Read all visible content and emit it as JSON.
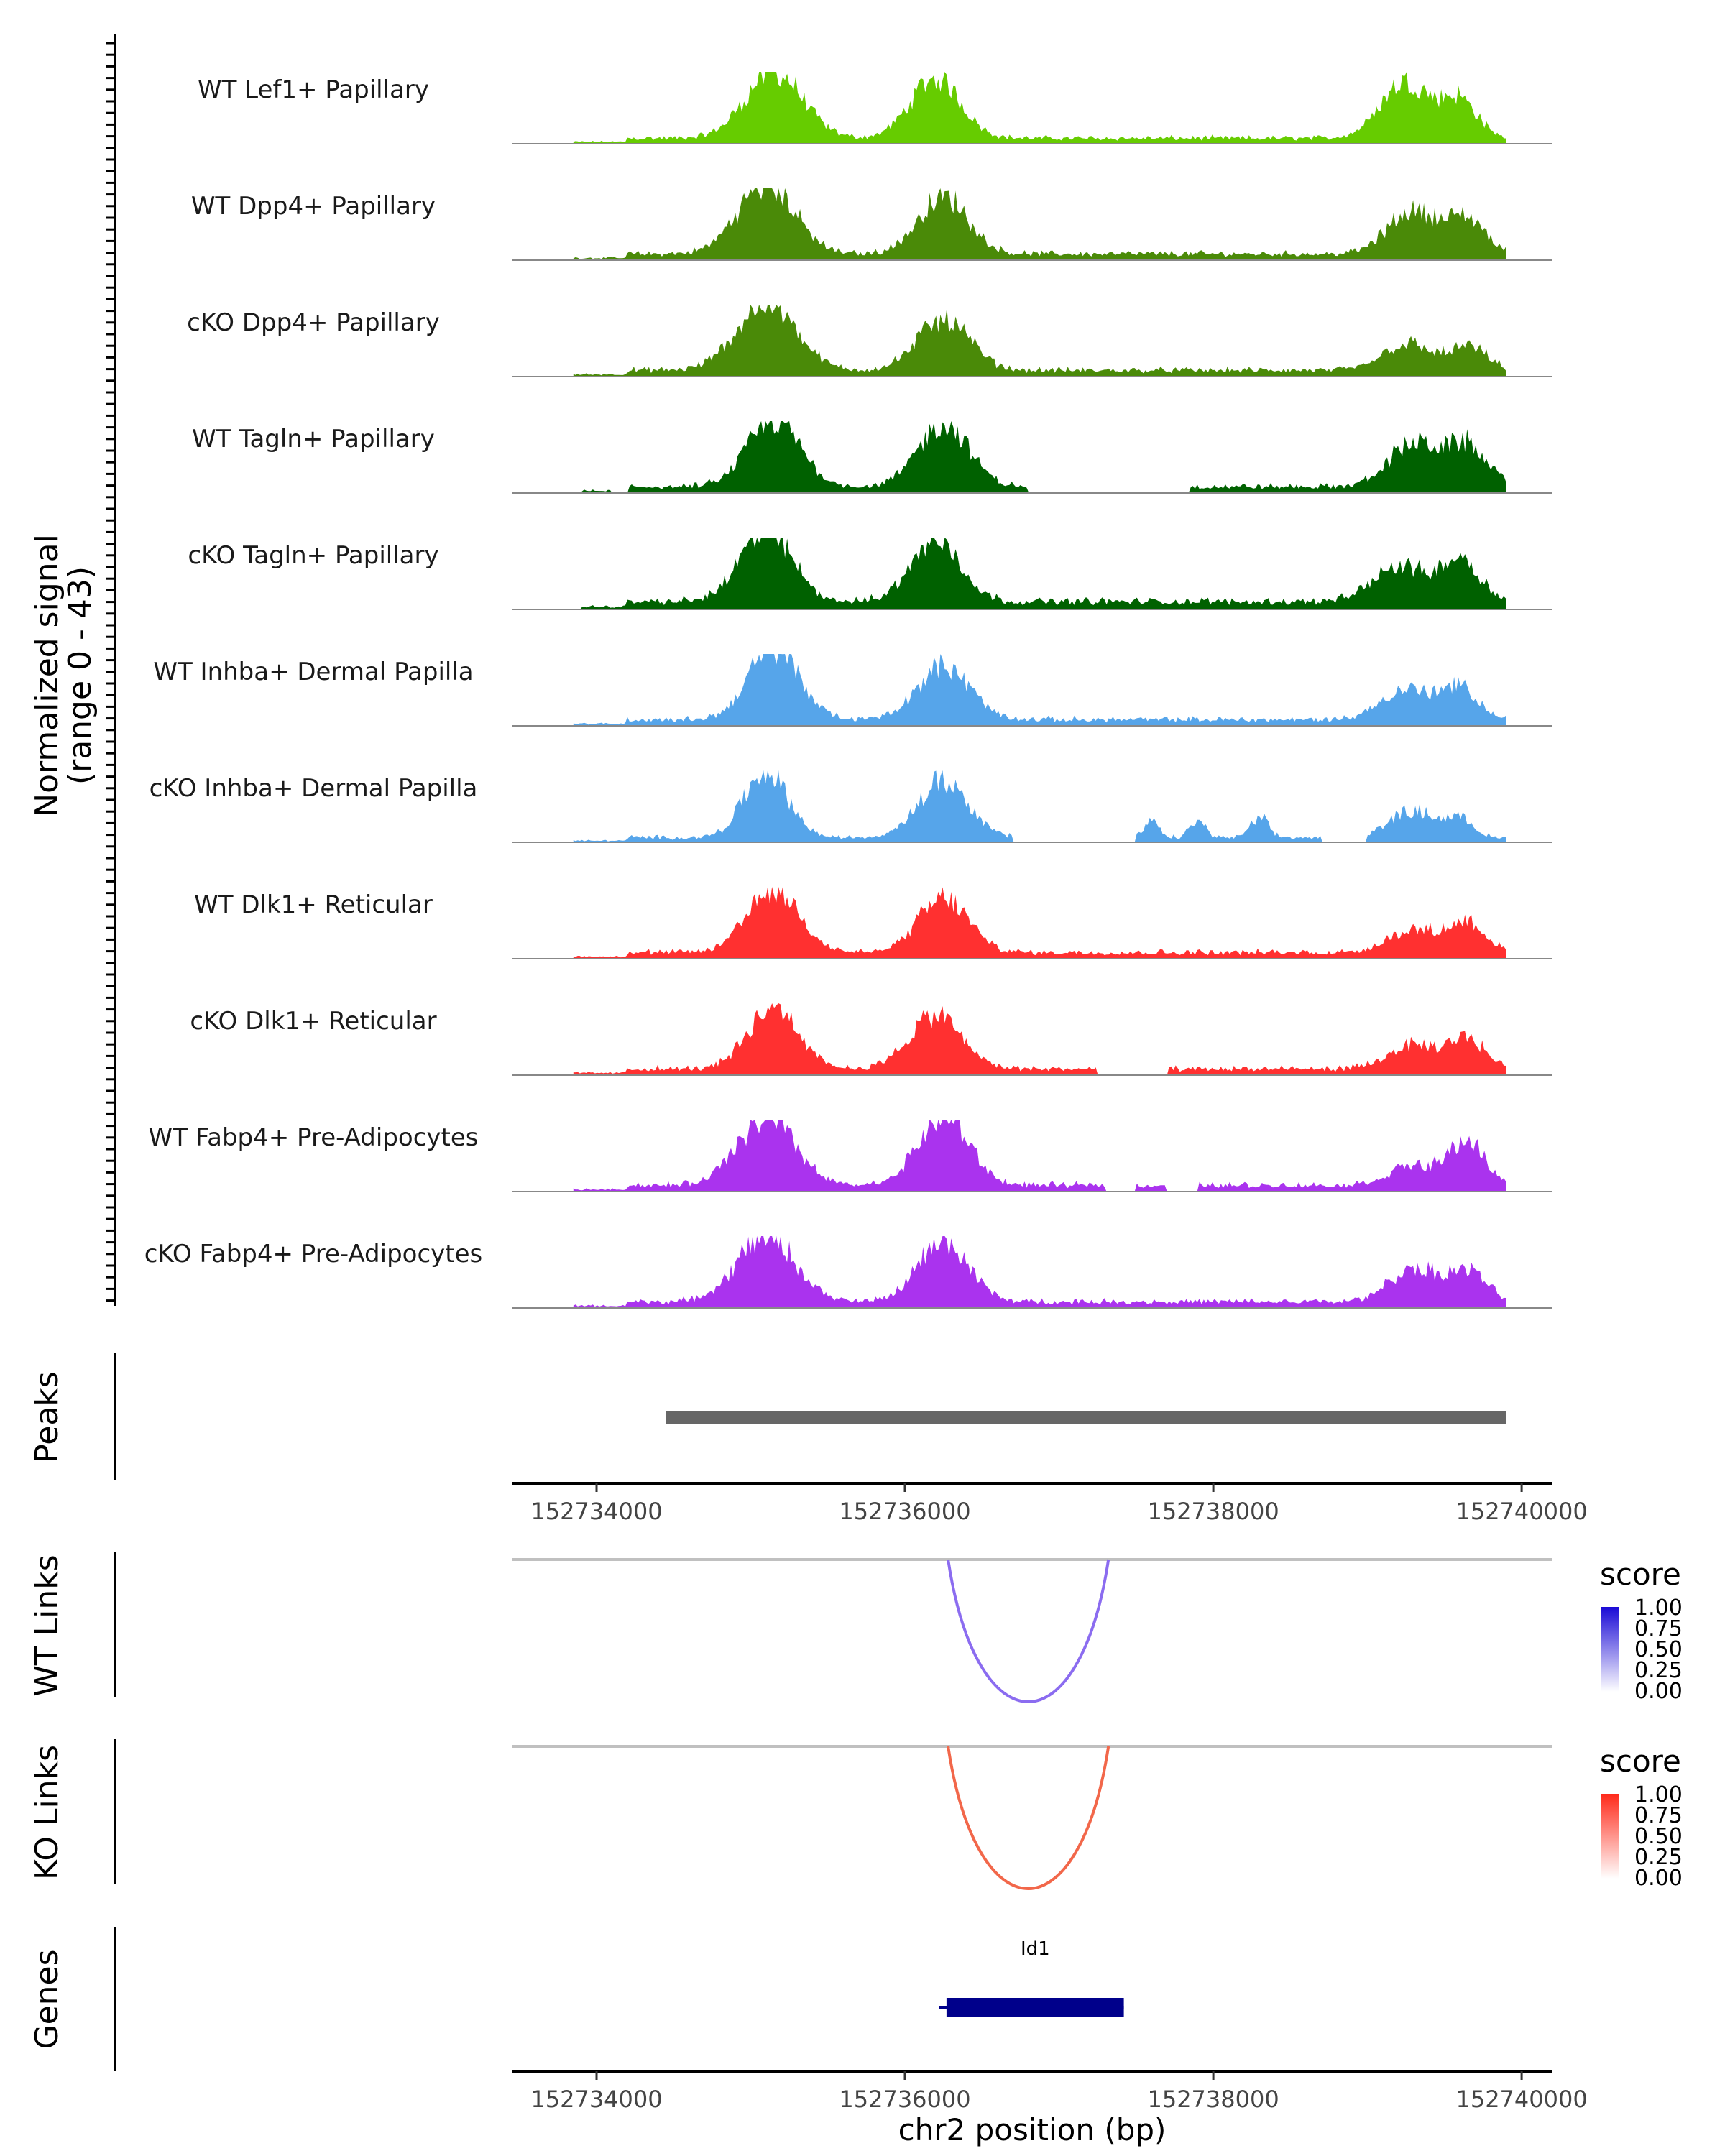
{
  "chart_data": {
    "type": "area",
    "title": "",
    "signal_ylabel": [
      "Normalized signal",
      "(range 0 - 43)"
    ],
    "signal_range": [
      0,
      43
    ],
    "xlabel": "chr2 position (bp)",
    "x_range": [
      152733450,
      152740200
    ],
    "x_ticks": [
      152734000,
      152736000,
      152738000,
      152740000
    ],
    "x_tick_labels": [
      "152734000",
      "152736000",
      "152738000",
      "152740000"
    ],
    "tracks": [
      {
        "name": "WT Lef1+ Papillary",
        "color": "#66cc00",
        "peaks": [
          [
            152735150,
            40,
            260
          ],
          [
            152736200,
            36,
            230
          ],
          [
            152739250,
            34,
            230
          ],
          [
            152739600,
            22,
            160
          ]
        ],
        "baseline": 3.5,
        "gaps": []
      },
      {
        "name": "WT Dpp4+ Papillary",
        "color": "#4a8a08",
        "peaks": [
          [
            152735100,
            42,
            260
          ],
          [
            152736250,
            34,
            230
          ],
          [
            152739300,
            26,
            230
          ],
          [
            152739650,
            20,
            170
          ]
        ],
        "baseline": 4,
        "gaps": []
      },
      {
        "name": "cKO Dpp4+ Papillary",
        "color": "#4a8a08",
        "peaks": [
          [
            152735100,
            40,
            270
          ],
          [
            152736250,
            30,
            240
          ],
          [
            152739250,
            16,
            220
          ],
          [
            152739650,
            14,
            170
          ]
        ],
        "baseline": 4,
        "gaps": []
      },
      {
        "name": "WT Tagln+ Papillary",
        "color": "#006100",
        "peaks": [
          [
            152735150,
            40,
            240
          ],
          [
            152736250,
            38,
            230
          ],
          [
            152739300,
            26,
            230
          ],
          [
            152739650,
            24,
            180
          ]
        ],
        "baseline": 4,
        "gaps": [
          [
            152733600,
            152733900
          ],
          [
            152734100,
            152734200
          ],
          [
            152736800,
            152737850
          ]
        ]
      },
      {
        "name": "cKO Tagln+ Papillary",
        "color": "#006100",
        "peaks": [
          [
            152735100,
            42,
            240
          ],
          [
            152736200,
            36,
            230
          ],
          [
            152739200,
            22,
            230
          ],
          [
            152739600,
            26,
            180
          ]
        ],
        "baseline": 5,
        "gaps": [
          [
            152733600,
            152733900
          ]
        ]
      },
      {
        "name": "WT Inhba+ Dermal Papilla",
        "color": "#56a5ea",
        "peaks": [
          [
            152735150,
            43,
            230
          ],
          [
            152736250,
            32,
            240
          ],
          [
            152739250,
            18,
            230
          ],
          [
            152739600,
            18,
            170
          ]
        ],
        "baseline": 4,
        "gaps": []
      },
      {
        "name": "cKO Inhba+ Dermal Papilla",
        "color": "#56a5ea",
        "peaks": [
          [
            152735100,
            40,
            200
          ],
          [
            152736250,
            34,
            230
          ],
          [
            152737600,
            10,
            60
          ],
          [
            152737900,
            10,
            70
          ],
          [
            152738300,
            12,
            80
          ],
          [
            152739300,
            16,
            220
          ],
          [
            152739600,
            10,
            120
          ]
        ],
        "baseline": 3,
        "gaps": [
          [
            152736700,
            152737500
          ],
          [
            152738700,
            152739000
          ]
        ]
      },
      {
        "name": "WT Dlk1+ Reticular",
        "color": "#ff3030",
        "peaks": [
          [
            152735150,
            38,
            240
          ],
          [
            152736250,
            32,
            230
          ],
          [
            152739300,
            14,
            230
          ],
          [
            152739650,
            18,
            160
          ]
        ],
        "baseline": 4,
        "gaps": []
      },
      {
        "name": "cKO Dlk1+ Reticular",
        "color": "#ff3030",
        "peaks": [
          [
            152735150,
            38,
            230
          ],
          [
            152736200,
            32,
            240
          ],
          [
            152739300,
            14,
            230
          ],
          [
            152739650,
            18,
            160
          ]
        ],
        "baseline": 4,
        "gaps": [
          [
            152737250,
            152737700
          ]
        ]
      },
      {
        "name": "WT Fabp4+ Pre-Adipocytes",
        "color": "#aa33ee",
        "peaks": [
          [
            152735100,
            40,
            260
          ],
          [
            152736250,
            42,
            230
          ],
          [
            152739300,
            12,
            220
          ],
          [
            152739650,
            26,
            160
          ]
        ],
        "baseline": 4,
        "gaps": [
          [
            152737300,
            152737500
          ],
          [
            152737700,
            152737900
          ]
        ]
      },
      {
        "name": "cKO Fabp4+ Pre-Adipocytes",
        "color": "#aa33ee",
        "peaks": [
          [
            152735100,
            40,
            260
          ],
          [
            152736250,
            36,
            230
          ],
          [
            152739300,
            20,
            220
          ],
          [
            152739650,
            18,
            170
          ]
        ],
        "baseline": 4,
        "gaps": []
      }
    ],
    "peaks_track": {
      "label": "Peaks",
      "regions": [
        [
          152734450,
          152739900
        ]
      ],
      "color": "#666666"
    },
    "links_tracks": [
      {
        "label": "WT Links",
        "start": 152736280,
        "end": 152737320,
        "score": 0.6,
        "color": "#8b6cf0",
        "legend": {
          "title": "score",
          "ticks": [
            "1.00",
            "0.75",
            "0.50",
            "0.25",
            "0.00"
          ],
          "high": "#1a0ad6",
          "low": "#ffffff"
        }
      },
      {
        "label": "KO Links",
        "start": 152736280,
        "end": 152737320,
        "score": 0.6,
        "color": "#f2674a",
        "legend": {
          "title": "score",
          "ticks": [
            "1.00",
            "0.75",
            "0.50",
            "0.25",
            "0.00"
          ],
          "high": "#ff2a1a",
          "low": "#ffffff"
        }
      }
    ],
    "genes_track": {
      "label": "Genes",
      "genes": [
        {
          "name": "Id1",
          "start": 152736270,
          "end": 152737420,
          "color": "#00008b"
        }
      ]
    }
  }
}
